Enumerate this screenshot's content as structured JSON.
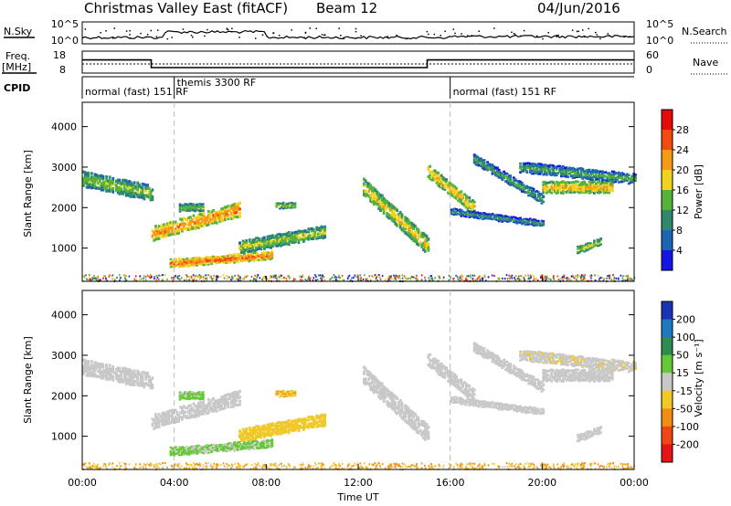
{
  "header": {
    "title": "Christmas Valley East (fitACF)",
    "beam": "Beam 12",
    "date": "04/Jun/2016"
  },
  "noise_panel": {
    "left_label": "N.Sky",
    "right_label": "N.Search",
    "left_ticks": [
      "10^5",
      "10^0"
    ],
    "right_ticks": [
      "10^5",
      "10^0"
    ]
  },
  "freq_panel": {
    "left_label_1": "Freq.",
    "left_label_2": "[MHz]",
    "right_label": "Nave",
    "left_ticks": [
      "18",
      "8"
    ],
    "right_ticks": [
      "60",
      "0"
    ],
    "freq_steps": [
      {
        "start": 0.0,
        "end": 3.0,
        "value": 14.0
      },
      {
        "start": 3.0,
        "end": 15.0,
        "value": 10.5
      },
      {
        "start": 15.0,
        "end": 24.0,
        "value": 14.0
      }
    ]
  },
  "cpid": {
    "label": "CPID",
    "segments": [
      {
        "start": 0.0,
        "label": "normal (fast) 151 RF"
      },
      {
        "start": 4.0,
        "label": "themis 3300 RF"
      },
      {
        "start": 16.0,
        "label": "normal (fast) 151 RF"
      }
    ]
  },
  "x_axis": {
    "label": "Time UT",
    "ticks": [
      "00:00",
      "04:00",
      "08:00",
      "12:00",
      "16:00",
      "20:00",
      "00:00"
    ]
  },
  "power_panel": {
    "ylabel": "Slant Range [km]",
    "yticks": [
      "1000",
      "2000",
      "3000",
      "4000"
    ],
    "colorbar_label": "Power [dB]",
    "colorbar_ticks": [
      "4",
      "8",
      "12",
      "16",
      "20",
      "24",
      "28"
    ],
    "colorbar_colors": [
      "#1414e6",
      "#1e64b4",
      "#2e8a6a",
      "#56b23a",
      "#f2d21e",
      "#f49a14",
      "#f24a10",
      "#e60a0a"
    ]
  },
  "velocity_panel": {
    "ylabel": "Slant Range [km]",
    "yticks": [
      "1000",
      "2000",
      "3000",
      "4000"
    ],
    "colorbar_label": "Velocity [m s⁻¹]",
    "colorbar_ticks": [
      "200",
      "100",
      "50",
      "15",
      "-15",
      "-50",
      "-100",
      "-200"
    ],
    "colorbar_colors": [
      "#1a32b4",
      "#1e78be",
      "#2e8c50",
      "#64c832",
      "#c8c8c8",
      "#f0c828",
      "#f28c14",
      "#f04614",
      "#e61414"
    ]
  },
  "chart_data": {
    "type": "heatmap",
    "x_range_hours": [
      0,
      24
    ],
    "y_range_km": [
      180,
      4600
    ],
    "dashed_markers_hours": [
      4.0,
      16.0
    ],
    "echo_bands": [
      {
        "t0": 0.0,
        "t1": 3.0,
        "r0": 2700,
        "r1": 2350,
        "thickness": 330,
        "power": 17,
        "velocity": 0
      },
      {
        "t0": 3.0,
        "t1": 6.8,
        "r0": 1350,
        "r1": 1950,
        "thickness": 300,
        "power": 24,
        "velocity": 0
      },
      {
        "t0": 4.2,
        "t1": 5.2,
        "r0": 2000,
        "r1": 2000,
        "thickness": 160,
        "power": 16,
        "velocity": 20
      },
      {
        "t0": 3.8,
        "t1": 8.2,
        "r0": 620,
        "r1": 820,
        "thickness": 170,
        "power": 26,
        "velocity": 18
      },
      {
        "t0": 6.8,
        "t1": 10.5,
        "r0": 1020,
        "r1": 1400,
        "thickness": 260,
        "power": 18,
        "velocity": -40
      },
      {
        "t0": 8.4,
        "t1": 9.2,
        "r0": 2050,
        "r1": 2050,
        "thickness": 130,
        "power": 18,
        "velocity": -45
      },
      {
        "t0": 12.2,
        "t1": 15.0,
        "r0": 2500,
        "r1": 1050,
        "thickness": 360,
        "power": 20,
        "velocity": 0
      },
      {
        "t0": 15.0,
        "t1": 17.0,
        "r0": 2900,
        "r1": 2000,
        "thickness": 280,
        "power": 22,
        "velocity": 0
      },
      {
        "t0": 16.0,
        "t1": 20.0,
        "r0": 1900,
        "r1": 1600,
        "thickness": 130,
        "power": 12,
        "velocity": 0
      },
      {
        "t0": 19.0,
        "t1": 24.0,
        "r0": 3000,
        "r1": 2700,
        "thickness": 220,
        "power": 14,
        "velocity": -10
      },
      {
        "t0": 17.0,
        "t1": 20.0,
        "r0": 3200,
        "r1": 2200,
        "thickness": 200,
        "power": 14,
        "velocity": 0
      },
      {
        "t0": 20.0,
        "t1": 23.0,
        "r0": 2500,
        "r1": 2500,
        "thickness": 250,
        "power": 22,
        "velocity": 0
      },
      {
        "t0": 21.5,
        "t1": 22.5,
        "r0": 950,
        "r1": 1150,
        "thickness": 150,
        "power": 18,
        "velocity": 0
      }
    ]
  }
}
